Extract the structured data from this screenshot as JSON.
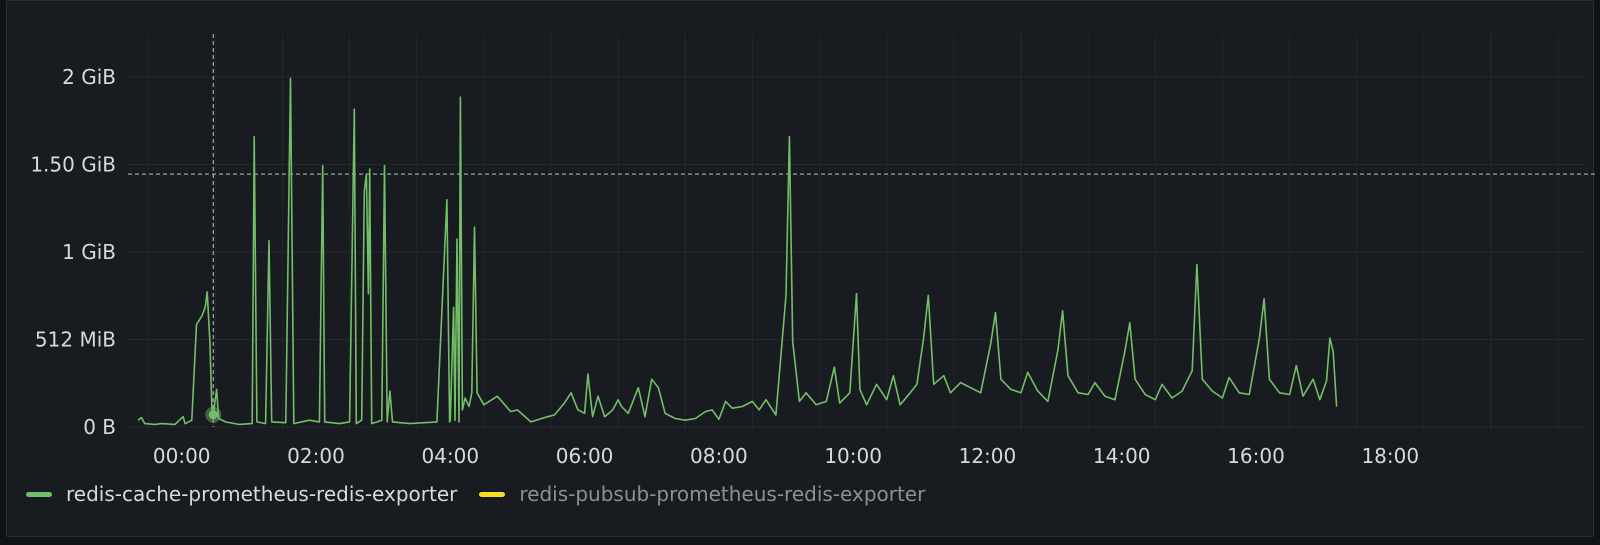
{
  "chart_data": {
    "type": "line",
    "title": "",
    "xlabel": "",
    "ylabel": "",
    "y_unit": "MiB",
    "x_unit": "hours",
    "ylim": [
      0,
      2300
    ],
    "xlim": [
      -0.8,
      20.9
    ],
    "threshold_line": {
      "y": 1480,
      "style": "dashed"
    },
    "crosshair": {
      "x": 0.47
    },
    "hover_point": {
      "x": 0.47,
      "y": 72
    },
    "y_ticks": [
      {
        "value": 0,
        "label": "0 B"
      },
      {
        "value": 512,
        "label": "512 MiB"
      },
      {
        "value": 1024,
        "label": "1 GiB"
      },
      {
        "value": 1536,
        "label": "1.50 GiB"
      },
      {
        "value": 2048,
        "label": "2 GiB"
      }
    ],
    "x_ticks": [
      {
        "value": 0,
        "label": "00:00"
      },
      {
        "value": 2,
        "label": "02:00"
      },
      {
        "value": 4,
        "label": "04:00"
      },
      {
        "value": 6,
        "label": "06:00"
      },
      {
        "value": 8,
        "label": "08:00"
      },
      {
        "value": 10,
        "label": "10:00"
      },
      {
        "value": 12,
        "label": "12:00"
      },
      {
        "value": 14,
        "label": "14:00"
      },
      {
        "value": 16,
        "label": "16:00"
      },
      {
        "value": 18,
        "label": "18:00"
      }
    ],
    "series": [
      {
        "name": "redis-cache-prometheus-redis-exporter",
        "color": "#73bf69",
        "points": [
          [
            -0.65,
            40
          ],
          [
            -0.6,
            55
          ],
          [
            -0.55,
            20
          ],
          [
            -0.4,
            15
          ],
          [
            -0.3,
            20
          ],
          [
            -0.1,
            15
          ],
          [
            0.02,
            60
          ],
          [
            0.05,
            20
          ],
          [
            0.15,
            40
          ],
          [
            0.22,
            600
          ],
          [
            0.3,
            650
          ],
          [
            0.35,
            700
          ],
          [
            0.38,
            790
          ],
          [
            0.42,
            500
          ],
          [
            0.45,
            100
          ],
          [
            0.47,
            72
          ],
          [
            0.52,
            220
          ],
          [
            0.55,
            50
          ],
          [
            0.65,
            30
          ],
          [
            0.85,
            15
          ],
          [
            1.05,
            20
          ],
          [
            1.08,
            1700
          ],
          [
            1.12,
            30
          ],
          [
            1.25,
            20
          ],
          [
            1.3,
            1090
          ],
          [
            1.34,
            30
          ],
          [
            1.55,
            25
          ],
          [
            1.62,
            2040
          ],
          [
            1.67,
            20
          ],
          [
            1.9,
            40
          ],
          [
            2.05,
            30
          ],
          [
            2.1,
            1530
          ],
          [
            2.13,
            30
          ],
          [
            2.35,
            20
          ],
          [
            2.5,
            30
          ],
          [
            2.57,
            1860
          ],
          [
            2.6,
            20
          ],
          [
            2.68,
            40
          ],
          [
            2.72,
            1380
          ],
          [
            2.75,
            1480
          ],
          [
            2.78,
            780
          ],
          [
            2.8,
            1510
          ],
          [
            2.83,
            20
          ],
          [
            2.98,
            40
          ],
          [
            3.02,
            1530
          ],
          [
            3.06,
            30
          ],
          [
            3.1,
            210
          ],
          [
            3.14,
            30
          ],
          [
            3.4,
            20
          ],
          [
            3.8,
            30
          ],
          [
            3.95,
            1330
          ],
          [
            3.99,
            30
          ],
          [
            4.0,
            40
          ],
          [
            4.05,
            700
          ],
          [
            4.07,
            40
          ],
          [
            4.1,
            1100
          ],
          [
            4.13,
            30
          ],
          [
            4.15,
            1930
          ],
          [
            4.18,
            100
          ],
          [
            4.22,
            170
          ],
          [
            4.28,
            120
          ],
          [
            4.32,
            200
          ],
          [
            4.36,
            1170
          ],
          [
            4.4,
            200
          ],
          [
            4.5,
            130
          ],
          [
            4.7,
            180
          ],
          [
            4.9,
            90
          ],
          [
            5.0,
            100
          ],
          [
            5.2,
            30
          ],
          [
            5.45,
            60
          ],
          [
            5.55,
            70
          ],
          [
            5.7,
            140
          ],
          [
            5.8,
            200
          ],
          [
            5.9,
            100
          ],
          [
            6.0,
            80
          ],
          [
            6.05,
            310
          ],
          [
            6.12,
            60
          ],
          [
            6.2,
            180
          ],
          [
            6.3,
            60
          ],
          [
            6.42,
            100
          ],
          [
            6.5,
            160
          ],
          [
            6.55,
            120
          ],
          [
            6.65,
            80
          ],
          [
            6.8,
            230
          ],
          [
            6.9,
            60
          ],
          [
            7.0,
            280
          ],
          [
            7.1,
            230
          ],
          [
            7.2,
            80
          ],
          [
            7.35,
            50
          ],
          [
            7.5,
            40
          ],
          [
            7.65,
            50
          ],
          [
            7.8,
            90
          ],
          [
            7.9,
            100
          ],
          [
            8.0,
            45
          ],
          [
            8.1,
            150
          ],
          [
            8.2,
            110
          ],
          [
            8.35,
            120
          ],
          [
            8.5,
            150
          ],
          [
            8.6,
            100
          ],
          [
            8.7,
            160
          ],
          [
            8.85,
            70
          ],
          [
            9.0,
            770
          ],
          [
            9.05,
            1700
          ],
          [
            9.1,
            500
          ],
          [
            9.2,
            150
          ],
          [
            9.3,
            200
          ],
          [
            9.45,
            130
          ],
          [
            9.6,
            150
          ],
          [
            9.72,
            350
          ],
          [
            9.8,
            140
          ],
          [
            9.95,
            200
          ],
          [
            10.05,
            780
          ],
          [
            10.1,
            220
          ],
          [
            10.2,
            130
          ],
          [
            10.35,
            250
          ],
          [
            10.5,
            160
          ],
          [
            10.6,
            300
          ],
          [
            10.7,
            130
          ],
          [
            10.85,
            200
          ],
          [
            10.95,
            250
          ],
          [
            11.05,
            520
          ],
          [
            11.12,
            770
          ],
          [
            11.2,
            250
          ],
          [
            11.35,
            300
          ],
          [
            11.45,
            200
          ],
          [
            11.6,
            260
          ],
          [
            11.75,
            230
          ],
          [
            11.9,
            200
          ],
          [
            12.05,
            490
          ],
          [
            12.12,
            670
          ],
          [
            12.2,
            280
          ],
          [
            12.35,
            220
          ],
          [
            12.5,
            200
          ],
          [
            12.6,
            320
          ],
          [
            12.75,
            210
          ],
          [
            12.9,
            150
          ],
          [
            13.05,
            450
          ],
          [
            13.12,
            680
          ],
          [
            13.2,
            300
          ],
          [
            13.35,
            200
          ],
          [
            13.5,
            190
          ],
          [
            13.6,
            260
          ],
          [
            13.75,
            180
          ],
          [
            13.9,
            160
          ],
          [
            14.05,
            450
          ],
          [
            14.12,
            610
          ],
          [
            14.2,
            280
          ],
          [
            14.35,
            190
          ],
          [
            14.5,
            160
          ],
          [
            14.6,
            250
          ],
          [
            14.75,
            170
          ],
          [
            14.9,
            210
          ],
          [
            15.05,
            330
          ],
          [
            15.12,
            950
          ],
          [
            15.2,
            280
          ],
          [
            15.35,
            210
          ],
          [
            15.5,
            170
          ],
          [
            15.6,
            290
          ],
          [
            15.75,
            200
          ],
          [
            15.9,
            190
          ],
          [
            16.05,
            520
          ],
          [
            16.12,
            750
          ],
          [
            16.2,
            280
          ],
          [
            16.35,
            200
          ],
          [
            16.5,
            190
          ],
          [
            16.6,
            360
          ],
          [
            16.7,
            180
          ],
          [
            16.85,
            280
          ],
          [
            16.95,
            160
          ],
          [
            17.05,
            270
          ],
          [
            17.1,
            520
          ],
          [
            17.15,
            440
          ],
          [
            17.2,
            120
          ]
        ]
      },
      {
        "name": "redis-pubsub-prometheus-redis-exporter",
        "color": "#fade2a",
        "points": []
      }
    ]
  },
  "legend": {
    "items": [
      {
        "label": "redis-cache-prometheus-redis-exporter",
        "color": "#73bf69",
        "active": true
      },
      {
        "label": "redis-pubsub-prometheus-redis-exporter",
        "color": "#fade2a",
        "active": false
      }
    ]
  }
}
